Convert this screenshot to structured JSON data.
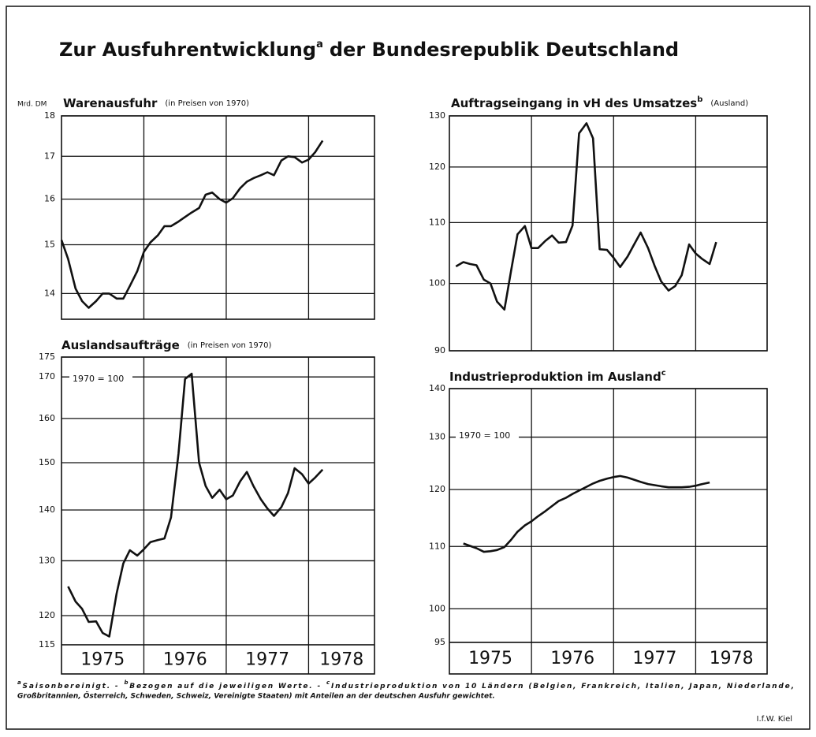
{
  "header": {
    "title": "Zur Ausfuhrentwicklung",
    "title_note": "a",
    "title_rest": "der Bundesrepublik Deutschland"
  },
  "chart_data": [
    {
      "type": "line",
      "title": "Warenausfuhr",
      "subtitle": "(in Preisen von 1970)",
      "ylabel": "Mrd. DM",
      "color": "#111",
      "log_y": true,
      "grid": true,
      "xlim": [
        1975,
        1978.8
      ],
      "xticks": [
        1976,
        1977,
        1978
      ],
      "ylim": [
        13.5,
        18
      ],
      "yticks": [
        14,
        15,
        16,
        17,
        18
      ],
      "x": [
        1975.0,
        1975.08,
        1975.17,
        1975.25,
        1975.33,
        1975.42,
        1975.5,
        1975.58,
        1975.67,
        1975.75,
        1975.83,
        1975.92,
        1976.0,
        1976.08,
        1976.17,
        1976.25,
        1976.33,
        1976.42,
        1976.5,
        1976.58,
        1976.67,
        1976.75,
        1976.83,
        1976.92,
        1977.0,
        1977.08,
        1977.17,
        1977.25,
        1977.33,
        1977.42,
        1977.5,
        1977.58,
        1977.67,
        1977.75,
        1977.83,
        1977.92,
        1978.0,
        1978.08,
        1978.17
      ],
      "values": [
        15.1,
        14.7,
        14.1,
        13.85,
        13.72,
        13.85,
        14.0,
        14.0,
        13.9,
        13.9,
        14.15,
        14.45,
        14.85,
        15.05,
        15.2,
        15.4,
        15.4,
        15.5,
        15.6,
        15.7,
        15.8,
        16.1,
        16.15,
        16.0,
        15.92,
        16.02,
        16.25,
        16.4,
        16.48,
        16.55,
        16.62,
        16.55,
        16.9,
        17.0,
        16.98,
        16.85,
        16.92,
        17.1,
        17.38
      ]
    },
    {
      "type": "line",
      "title": "Auftragseingang in vH des Umsatzes",
      "title_note": "b",
      "subtitle": "(Ausland)",
      "color": "#111",
      "log_y": true,
      "grid": true,
      "xlim": [
        1975,
        1978.87
      ],
      "xticks": [
        1976,
        1977,
        1978
      ],
      "ylim": [
        90,
        130
      ],
      "yticks": [
        90,
        100,
        110,
        120,
        130
      ],
      "x": [
        1975.08,
        1975.17,
        1975.25,
        1975.33,
        1975.42,
        1975.5,
        1975.58,
        1975.67,
        1975.75,
        1975.83,
        1975.92,
        1976.0,
        1976.08,
        1976.17,
        1976.25,
        1976.33,
        1976.42,
        1976.5,
        1976.58,
        1976.67,
        1976.75,
        1976.83,
        1976.92,
        1977.0,
        1977.08,
        1977.17,
        1977.25,
        1977.33,
        1977.42,
        1977.5,
        1977.58,
        1977.67,
        1977.75,
        1977.83,
        1977.92,
        1978.0,
        1978.08,
        1978.17,
        1978.25
      ],
      "values": [
        102.7,
        103.4,
        103.1,
        102.9,
        100.6,
        100.0,
        97.2,
        96.0,
        101.9,
        108.0,
        109.4,
        105.7,
        105.7,
        106.9,
        107.8,
        106.6,
        106.7,
        109.5,
        126.5,
        128.5,
        125.5,
        105.5,
        105.4,
        104.1,
        102.6,
        104.3,
        106.3,
        108.3,
        105.7,
        102.8,
        100.3,
        98.9,
        99.6,
        101.3,
        106.3,
        104.8,
        103.9,
        103.1,
        106.7
      ]
    },
    {
      "type": "line",
      "title": "Auslandsaufträge",
      "subtitle": "(in Preisen von 1970)",
      "annotation": "1970 = 100",
      "color": "#111",
      "log_y": true,
      "grid": true,
      "xlim": [
        1975,
        1978.8
      ],
      "xticks": [
        1976,
        1977,
        1978
      ],
      "ylim": [
        115,
        175
      ],
      "yticks": [
        115,
        120,
        130,
        140,
        150,
        160,
        170,
        175
      ],
      "year_labels": [
        "1975",
        "1976",
        "1977",
        "1978"
      ],
      "x": [
        1975.08,
        1975.17,
        1975.25,
        1975.33,
        1975.42,
        1975.5,
        1975.58,
        1975.67,
        1975.75,
        1975.83,
        1975.92,
        1976.0,
        1976.08,
        1976.17,
        1976.25,
        1976.33,
        1976.42,
        1976.5,
        1976.58,
        1976.67,
        1976.75,
        1976.83,
        1976.92,
        1977.0,
        1977.08,
        1977.17,
        1977.25,
        1977.33,
        1977.42,
        1977.5,
        1977.58,
        1977.67,
        1977.75,
        1977.83,
        1977.92,
        1978.0,
        1978.08,
        1978.17
      ],
      "values": [
        125.2,
        122.5,
        121.2,
        118.9,
        119.0,
        117.0,
        116.4,
        124,
        129.5,
        132.0,
        131.0,
        132.2,
        133.6,
        134.0,
        134.3,
        138.5,
        152,
        169.5,
        170.8,
        150,
        145,
        142.5,
        144.2,
        142.2,
        143,
        146,
        148,
        145,
        142.2,
        140.3,
        138.8,
        140.6,
        143.5,
        148.8,
        147.5,
        145.5,
        146.8,
        148.5
      ]
    },
    {
      "type": "line",
      "title": "Industrieproduktion im Ausland",
      "title_note": "c",
      "annotation": "1970 = 100",
      "color": "#111",
      "log_y": true,
      "grid": true,
      "xlim": [
        1975,
        1978.87
      ],
      "xticks": [
        1976,
        1977,
        1978
      ],
      "ylim": [
        95,
        140
      ],
      "yticks": [
        95,
        100,
        110,
        120,
        130,
        140
      ],
      "year_labels": [
        "1975",
        "1976",
        "1977",
        "1978"
      ],
      "x": [
        1975.17,
        1975.25,
        1975.33,
        1975.42,
        1975.5,
        1975.58,
        1975.67,
        1975.75,
        1975.83,
        1975.92,
        1976.0,
        1976.08,
        1976.17,
        1976.25,
        1976.33,
        1976.42,
        1976.5,
        1976.58,
        1976.67,
        1976.75,
        1976.83,
        1976.92,
        1977.0,
        1977.08,
        1977.17,
        1977.25,
        1977.33,
        1977.42,
        1977.5,
        1977.58,
        1977.67,
        1977.75,
        1977.83,
        1977.92,
        1978.0,
        1978.08,
        1978.17
      ],
      "values": [
        110.5,
        110.1,
        109.7,
        109.1,
        109.2,
        109.4,
        109.9,
        111.1,
        112.5,
        113.6,
        114.3,
        115.2,
        116.1,
        117.0,
        117.9,
        118.5,
        119.2,
        119.8,
        120.5,
        121.1,
        121.6,
        122.0,
        122.3,
        122.5,
        122.2,
        121.8,
        121.4,
        121.0,
        120.8,
        120.6,
        120.4,
        120.4,
        120.4,
        120.5,
        120.7,
        121.0,
        121.3
      ]
    }
  ],
  "footnotes": [
    {
      "mark": "a",
      "text": [
        "Saisonbereinigt. -"
      ]
    },
    {
      "mark": "b",
      "text": [
        "Bezogen auf die jeweiligen Werte. -"
      ]
    },
    {
      "mark": "c",
      "text": [
        "Industrieproduktion von 10 Ländern (Belgien, Frankreich, Italien, Japan, Niederlande,",
        "Großbritannien, Österreich, Schweden, Schweiz, Vereinigte Staaten) mit Anteilen an der deutschen Ausfuhr gewichtet."
      ]
    }
  ],
  "credit": "I.f.W. Kiel"
}
